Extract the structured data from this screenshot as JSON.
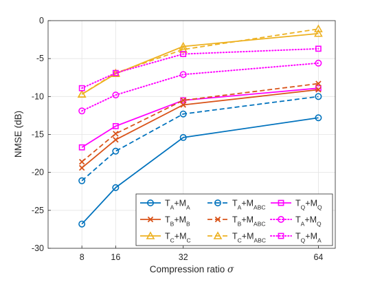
{
  "chart_data": {
    "type": "line",
    "xlabel_main": "Compression ratio ",
    "xlabel_symbol": "σ",
    "ylabel": "NMSE (dB)",
    "x": [
      8,
      16,
      32,
      64
    ],
    "xticks": [
      "8",
      "16",
      "32",
      "64"
    ],
    "xlim": [
      0,
      68
    ],
    "ylim": [
      -30,
      0
    ],
    "yticks": [
      0,
      -5,
      -10,
      -15,
      -20,
      -25,
      -30
    ],
    "ytick_labels": [
      "0",
      "-5",
      "-10",
      "-15",
      "-20",
      "-25",
      "-30"
    ],
    "grid": true,
    "legend_position": "bottom-right",
    "series": [
      {
        "label_main": "T",
        "sub1": "A",
        "mid": "+M",
        "sub2": "A",
        "values": [
          -26.8,
          -22.0,
          -15.4,
          -12.8
        ],
        "color": "#0072BD",
        "dash": "solid",
        "marker": "circle"
      },
      {
        "label_main": "T",
        "sub1": "A",
        "mid": "+M",
        "sub2": "ABC",
        "values": [
          -21.1,
          -17.2,
          -12.3,
          -10.0
        ],
        "color": "#0072BD",
        "dash": "dashed",
        "marker": "circle"
      },
      {
        "label_main": "T",
        "sub1": "Q",
        "mid": "+M",
        "sub2": "Q",
        "values": [
          -16.7,
          -13.9,
          -10.5,
          -8.9
        ],
        "color": "#FF00FF",
        "dash": "solid",
        "marker": "square"
      },
      {
        "label_main": "T",
        "sub1": "B",
        "mid": "+M",
        "sub2": "B",
        "values": [
          -19.4,
          -15.7,
          -11.1,
          -9.1
        ],
        "color": "#D95319",
        "dash": "solid",
        "marker": "x"
      },
      {
        "label_main": "T",
        "sub1": "B",
        "mid": "+M",
        "sub2": "ABC",
        "values": [
          -18.6,
          -14.9,
          -10.5,
          -8.3
        ],
        "color": "#D95319",
        "dash": "dashed",
        "marker": "x"
      },
      {
        "label_main": "T",
        "sub1": "A",
        "mid": "+M",
        "sub2": "Q",
        "values": [
          -11.9,
          -9.8,
          -7.1,
          -5.6
        ],
        "color": "#FF00FF",
        "dash": "dotted",
        "marker": "circle"
      },
      {
        "label_main": "T",
        "sub1": "C",
        "mid": "+M",
        "sub2": "C",
        "values": [
          -9.7,
          -7.0,
          -3.4,
          -1.7
        ],
        "color": "#EDB120",
        "dash": "solid",
        "marker": "triangle"
      },
      {
        "label_main": "T",
        "sub1": "C",
        "mid": "+M",
        "sub2": "ABC",
        "values": [
          -9.7,
          -6.9,
          -3.8,
          -1.1
        ],
        "color": "#EDB120",
        "dash": "dashed",
        "marker": "triangle"
      },
      {
        "label_main": "T",
        "sub1": "Q",
        "mid": "+M",
        "sub2": "A",
        "values": [
          -8.9,
          -6.9,
          -4.4,
          -3.7
        ],
        "color": "#FF00FF",
        "dash": "dotted",
        "marker": "square"
      }
    ]
  }
}
